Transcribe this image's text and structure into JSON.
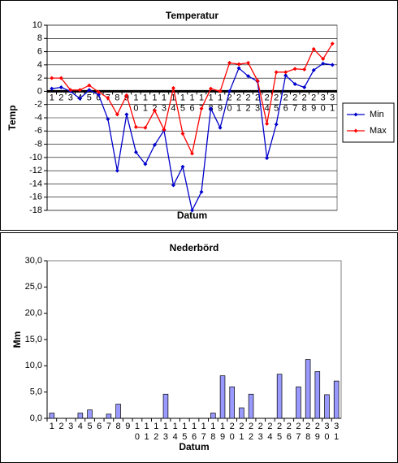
{
  "chart_data": [
    {
      "type": "line",
      "title": "Temperatur",
      "x_label": "Datum",
      "y_label": "Temp",
      "categories": [
        "1",
        "2",
        "3",
        "4",
        "5",
        "6",
        "7",
        "8",
        "9",
        "10",
        "11",
        "12",
        "13",
        "14",
        "15",
        "16",
        "17",
        "18",
        "19",
        "20",
        "21",
        "22",
        "23",
        "24",
        "25",
        "26",
        "27",
        "28",
        "29",
        "30",
        "31"
      ],
      "series": [
        {
          "name": "Min",
          "color": "#0000cc",
          "values": [
            0.4,
            0.6,
            0,
            -1.1,
            0.2,
            -0.5,
            -4.2,
            -12,
            -3.5,
            -9.2,
            -11,
            -8.1,
            -5.9,
            -14.2,
            -11.4,
            -18,
            -15.2,
            -2.6,
            -5.5,
            0,
            3.5,
            2.3,
            1.5,
            -10.1,
            -5,
            2.4,
            1.1,
            0.6,
            3.2,
            4.2,
            4.0
          ]
        },
        {
          "name": "Max",
          "color": "#ff0000",
          "values": [
            2.0,
            2.0,
            0.2,
            0.2,
            0.9,
            -0.1,
            -1,
            -3.5,
            -0.6,
            -5.4,
            -5.5,
            -2.9,
            -5.8,
            0.5,
            -6.4,
            -9.4,
            -2.6,
            0.4,
            0,
            4.3,
            4.1,
            4.3,
            1.6,
            -4.9,
            2.9,
            2.9,
            3.4,
            3.3,
            6.4,
            4.9,
            7.2
          ]
        }
      ],
      "ylim": [
        -18,
        10
      ],
      "yticks": [
        10,
        8,
        6,
        4,
        2,
        0,
        -2,
        -4,
        -6,
        -8,
        -10,
        -12,
        -14,
        -16,
        -18
      ],
      "grid": true,
      "legend": "right"
    },
    {
      "type": "bar",
      "title": "Nederbörd",
      "x_label": "Datum",
      "y_label": "Mm",
      "color": "#9999ff",
      "categories": [
        "1",
        "2",
        "3",
        "4",
        "5",
        "6",
        "7",
        "8",
        "9",
        "10",
        "11",
        "12",
        "13",
        "14",
        "15",
        "16",
        "17",
        "18",
        "19",
        "20",
        "21",
        "22",
        "23",
        "24",
        "25",
        "26",
        "27",
        "28",
        "29",
        "30",
        "31"
      ],
      "values": [
        1.0,
        0,
        0,
        1.0,
        1.6,
        0,
        0.8,
        2.7,
        0,
        0,
        0,
        0,
        4.6,
        0,
        0,
        0,
        0,
        1.0,
        8.1,
        6.0,
        2.0,
        4.6,
        0,
        0,
        8.4,
        0,
        6.0,
        11.2,
        8.9,
        4.5,
        7.1
      ],
      "ylim": [
        0,
        30
      ],
      "yticks": [
        {
          "value": 0,
          "label": "0,0"
        },
        {
          "value": 5,
          "label": "5,0"
        },
        {
          "value": 10,
          "label": "10,0"
        },
        {
          "value": 15,
          "label": "15,0"
        },
        {
          "value": 20,
          "label": "20,0"
        },
        {
          "value": 25,
          "label": "25,0"
        },
        {
          "value": 30,
          "label": "30,0"
        }
      ],
      "grid": false
    }
  ]
}
